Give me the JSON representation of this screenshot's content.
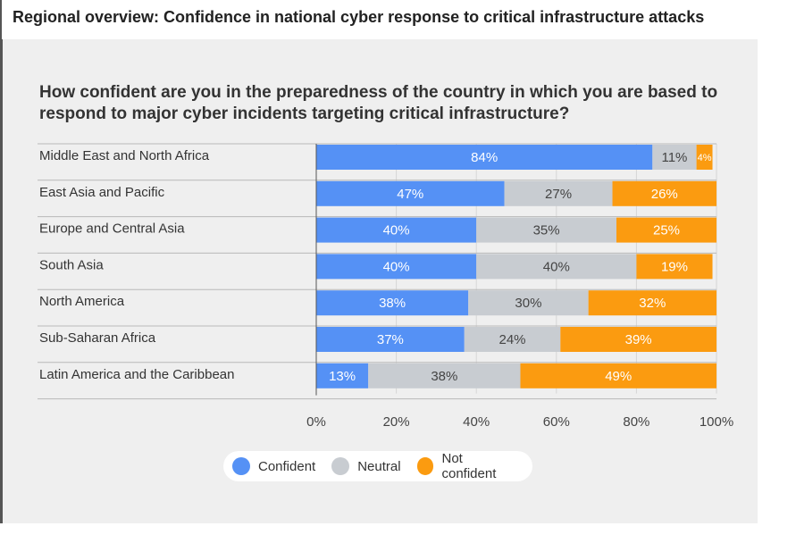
{
  "page": {
    "title": "Regional overview: Confidence in national cyber response to critical infrastructure attacks"
  },
  "chart_data": {
    "type": "bar",
    "orientation": "horizontal",
    "stacked": true,
    "title": "How confident are you in the preparedness of the country in which you are based to respond to major cyber incidents targeting critical infrastructure?",
    "categories": [
      "Middle East and North Africa",
      "East Asia and Pacific",
      "Europe and Central Asia",
      "South Asia",
      "North America",
      "Sub-Saharan Africa",
      "Latin America and the Caribbean"
    ],
    "series": [
      {
        "name": "Confident",
        "color": "#5591f5",
        "label_color": "#ffffff",
        "values": [
          84,
          47,
          40,
          40,
          38,
          37,
          13
        ]
      },
      {
        "name": "Neutral",
        "color": "#c8ccd1",
        "label_color": "#444444",
        "values": [
          11,
          27,
          35,
          40,
          30,
          24,
          38
        ]
      },
      {
        "name": "Not confident",
        "color": "#fb9b10",
        "label_color": "#ffffff",
        "values": [
          4,
          26,
          25,
          19,
          32,
          39,
          49
        ]
      }
    ],
    "xlim": [
      0,
      100
    ],
    "xticks": [
      "0%",
      "20%",
      "40%",
      "60%",
      "80%",
      "100%"
    ],
    "grid": true,
    "legend_position": "bottom"
  }
}
